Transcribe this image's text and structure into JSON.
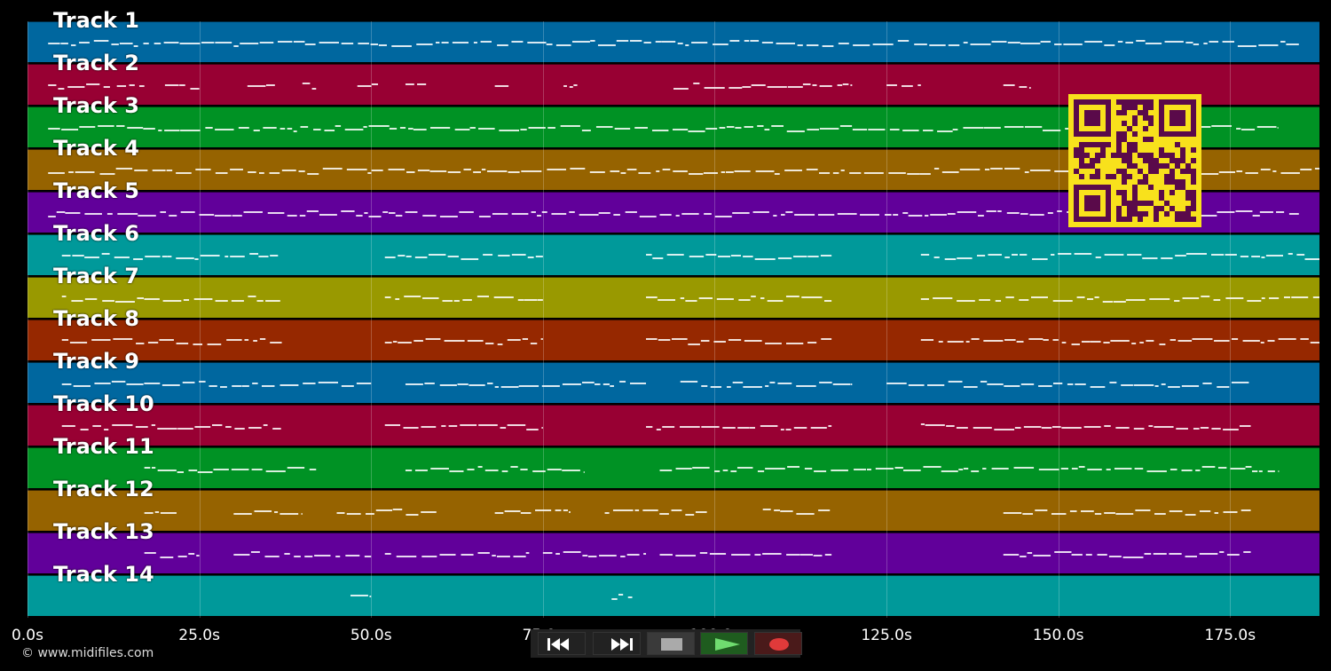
{
  "tracks": [
    {
      "label": "Track 1",
      "color": "#00679f"
    },
    {
      "label": "Track 2",
      "color": "#980033"
    },
    {
      "label": "Track 3",
      "color": "#009224"
    },
    {
      "label": "Track 4",
      "color": "#966300"
    },
    {
      "label": "Track 5",
      "color": "#61009a"
    },
    {
      "label": "Track 6",
      "color": "#00999a"
    },
    {
      "label": "Track 7",
      "color": "#999900"
    },
    {
      "label": "Track 8",
      "color": "#962800"
    },
    {
      "label": "Track 9",
      "color": "#00679f"
    },
    {
      "label": "Track 10",
      "color": "#980033"
    },
    {
      "label": "Track 11",
      "color": "#009224"
    },
    {
      "label": "Track 12",
      "color": "#966300"
    },
    {
      "label": "Track 13",
      "color": "#61009a"
    },
    {
      "label": "Track 14",
      "color": "#00999a"
    }
  ],
  "timeline": {
    "ticks": [
      "0.0s",
      "25.0s",
      "50.0s",
      "75.0s",
      "100.0s",
      "125.0s",
      "150.0s",
      "175.0s"
    ],
    "max_seconds": 188
  },
  "copyright": "© www.midifiles.com",
  "transport": {
    "buttons": [
      {
        "name": "rewind-button",
        "icon": "rewind-icon",
        "color": "#1a1a1a"
      },
      {
        "name": "fast-forward-button",
        "icon": "fast-forward-icon",
        "color": "#1a1a1a"
      },
      {
        "name": "stop-button",
        "icon": "stop-icon",
        "color": "#3a3a3a"
      },
      {
        "name": "play-button",
        "icon": "play-icon",
        "color": "#1f5c1f"
      },
      {
        "name": "record-button",
        "icon": "record-icon",
        "color": "#4a1a1a"
      }
    ]
  },
  "qr_code": {
    "color": "#f8e11c",
    "module_color": "#5a0a4a"
  }
}
